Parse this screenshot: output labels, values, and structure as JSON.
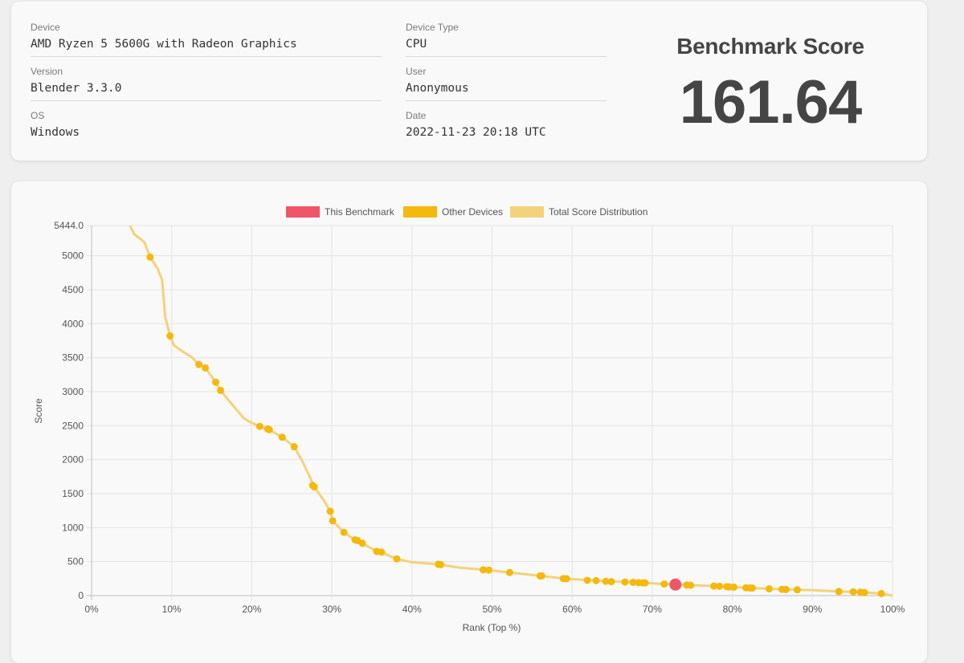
{
  "info": {
    "fields": [
      {
        "label": "Device",
        "value": "AMD Ryzen 5 5600G with Radeon Graphics"
      },
      {
        "label": "Version",
        "value": "Blender 3.3.0"
      },
      {
        "label": "OS",
        "value": "Windows"
      },
      {
        "label": "Device Type",
        "value": "CPU"
      },
      {
        "label": "User",
        "value": "Anonymous"
      },
      {
        "label": "Date",
        "value": "2022-11-23 20:18 UTC"
      }
    ],
    "score_title": "Benchmark Score",
    "score_value": "161.64"
  },
  "chart_data": {
    "type": "scatter",
    "xlabel": "Rank (Top %)",
    "ylabel": "Score",
    "xlim": [
      0,
      100
    ],
    "ylim": [
      0,
      5444.0
    ],
    "x_ticks": [
      "0%",
      "10%",
      "20%",
      "30%",
      "40%",
      "50%",
      "60%",
      "70%",
      "80%",
      "90%",
      "100%"
    ],
    "y_ticks": [
      "0",
      "500",
      "1000",
      "1500",
      "2000",
      "2500",
      "3000",
      "3500",
      "4000",
      "4500",
      "5000",
      "5444.0"
    ],
    "y_tick_values": [
      0,
      500,
      1000,
      1500,
      2000,
      2500,
      3000,
      3500,
      4000,
      4500,
      5000,
      5444
    ],
    "grid": true,
    "legend_position": "top",
    "colors": {
      "this": "#f0566a",
      "other": "#f5b80c",
      "dist": "#f4d27a",
      "grid": "#e3e3e3"
    },
    "series": [
      {
        "name": "This Benchmark",
        "points": [
          [
            72.9,
            161.64
          ]
        ]
      },
      {
        "name": "Other Devices",
        "points": [
          [
            7.3,
            4980
          ],
          [
            9.8,
            3820
          ],
          [
            13.4,
            3400
          ],
          [
            14.2,
            3350
          ],
          [
            15.5,
            3140
          ],
          [
            16.1,
            3020
          ],
          [
            21.0,
            2490
          ],
          [
            22.0,
            2450
          ],
          [
            22.2,
            2440
          ],
          [
            23.8,
            2330
          ],
          [
            25.3,
            2190
          ],
          [
            27.6,
            1620
          ],
          [
            27.8,
            1600
          ],
          [
            29.8,
            1240
          ],
          [
            30.1,
            1100
          ],
          [
            31.5,
            930
          ],
          [
            32.9,
            820
          ],
          [
            33.2,
            810
          ],
          [
            33.8,
            770
          ],
          [
            35.6,
            650
          ],
          [
            36.2,
            640
          ],
          [
            38.1,
            540
          ],
          [
            43.3,
            460
          ],
          [
            43.6,
            455
          ],
          [
            48.9,
            380
          ],
          [
            49.6,
            375
          ],
          [
            52.2,
            340
          ],
          [
            56.0,
            290
          ],
          [
            56.2,
            290
          ],
          [
            58.9,
            250
          ],
          [
            59.3,
            248
          ],
          [
            61.9,
            225
          ],
          [
            63.0,
            220
          ],
          [
            64.2,
            210
          ],
          [
            64.9,
            205
          ],
          [
            66.6,
            200
          ],
          [
            67.6,
            195
          ],
          [
            68.3,
            190
          ],
          [
            68.8,
            188
          ],
          [
            69.1,
            187
          ],
          [
            71.5,
            170
          ],
          [
            74.3,
            155
          ],
          [
            74.8,
            152
          ],
          [
            77.7,
            140
          ],
          [
            78.4,
            138
          ],
          [
            79.3,
            130
          ],
          [
            79.6,
            128
          ],
          [
            80.2,
            125
          ],
          [
            81.7,
            115
          ],
          [
            82.2,
            112
          ],
          [
            82.5,
            110
          ],
          [
            84.6,
            100
          ],
          [
            86.2,
            92
          ],
          [
            86.7,
            90
          ],
          [
            88.1,
            85
          ],
          [
            93.3,
            60
          ],
          [
            95.1,
            55
          ],
          [
            96.0,
            50
          ],
          [
            96.5,
            45
          ],
          [
            98.6,
            30
          ]
        ]
      },
      {
        "name": "Total Score Distribution",
        "points": [
          [
            4.8,
            5444
          ],
          [
            5.3,
            5320
          ],
          [
            6.6,
            5200
          ],
          [
            7.3,
            4980
          ],
          [
            8.2,
            4820
          ],
          [
            8.8,
            4650
          ],
          [
            9.2,
            4100
          ],
          [
            9.8,
            3820
          ],
          [
            10.3,
            3680
          ],
          [
            11.5,
            3580
          ],
          [
            12.5,
            3510
          ],
          [
            13.4,
            3400
          ],
          [
            14.2,
            3350
          ],
          [
            15.5,
            3140
          ],
          [
            16.1,
            3020
          ],
          [
            17.2,
            2860
          ],
          [
            18.2,
            2720
          ],
          [
            19.0,
            2610
          ],
          [
            20.0,
            2540
          ],
          [
            21.0,
            2490
          ],
          [
            22.2,
            2440
          ],
          [
            23.8,
            2330
          ],
          [
            25.3,
            2190
          ],
          [
            26.3,
            1980
          ],
          [
            27.2,
            1760
          ],
          [
            27.8,
            1600
          ],
          [
            29.0,
            1400
          ],
          [
            29.8,
            1240
          ],
          [
            30.1,
            1100
          ],
          [
            31.5,
            930
          ],
          [
            32.9,
            820
          ],
          [
            33.8,
            770
          ],
          [
            35.6,
            650
          ],
          [
            36.5,
            620
          ],
          [
            38.1,
            540
          ],
          [
            40.0,
            490
          ],
          [
            43.3,
            460
          ],
          [
            46.0,
            410
          ],
          [
            48.9,
            380
          ],
          [
            52.2,
            340
          ],
          [
            56.0,
            290
          ],
          [
            58.9,
            250
          ],
          [
            63.0,
            220
          ],
          [
            67.6,
            195
          ],
          [
            72.9,
            162
          ],
          [
            77.7,
            140
          ],
          [
            81.7,
            115
          ],
          [
            86.7,
            90
          ],
          [
            90.0,
            80
          ],
          [
            93.3,
            60
          ],
          [
            96.0,
            50
          ],
          [
            98.6,
            30
          ],
          [
            100,
            0
          ]
        ]
      }
    ]
  }
}
